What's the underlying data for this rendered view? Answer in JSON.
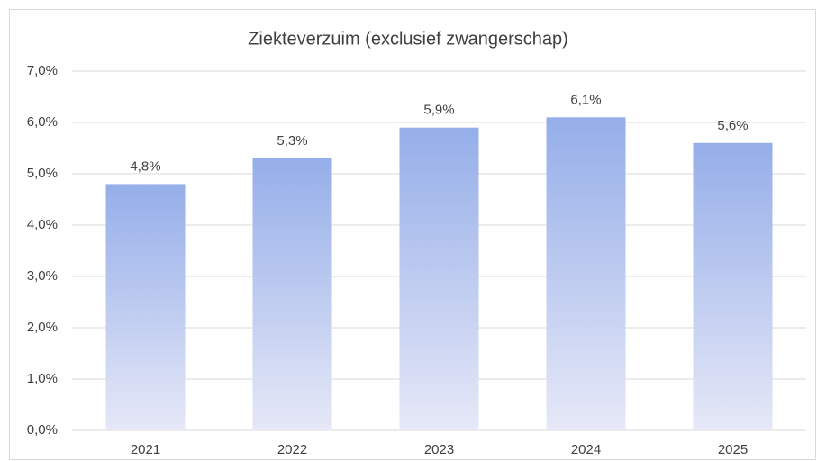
{
  "chart_data": {
    "type": "bar",
    "title": "Ziekteverzuim (exclusief zwangerschap)",
    "categories": [
      "2021",
      "2022",
      "2023",
      "2024",
      "2025"
    ],
    "values": [
      4.8,
      5.3,
      5.9,
      6.1,
      5.6
    ],
    "value_labels": [
      "4,8%",
      "5,3%",
      "5,9%",
      "6,1%",
      "5,6%"
    ],
    "color": "#95aee9",
    "ylim": [
      0,
      7
    ],
    "yticks": [
      {
        "value": 0,
        "label": "0,0%"
      },
      {
        "value": 1,
        "label": "1,0%"
      },
      {
        "value": 2,
        "label": "2,0%"
      },
      {
        "value": 3,
        "label": "3,0%"
      },
      {
        "value": 4,
        "label": "4,0%"
      },
      {
        "value": 5,
        "label": "5,0%"
      },
      {
        "value": 6,
        "label": "6,0%"
      },
      {
        "value": 7,
        "label": "7,0%"
      }
    ],
    "grid": true
  }
}
